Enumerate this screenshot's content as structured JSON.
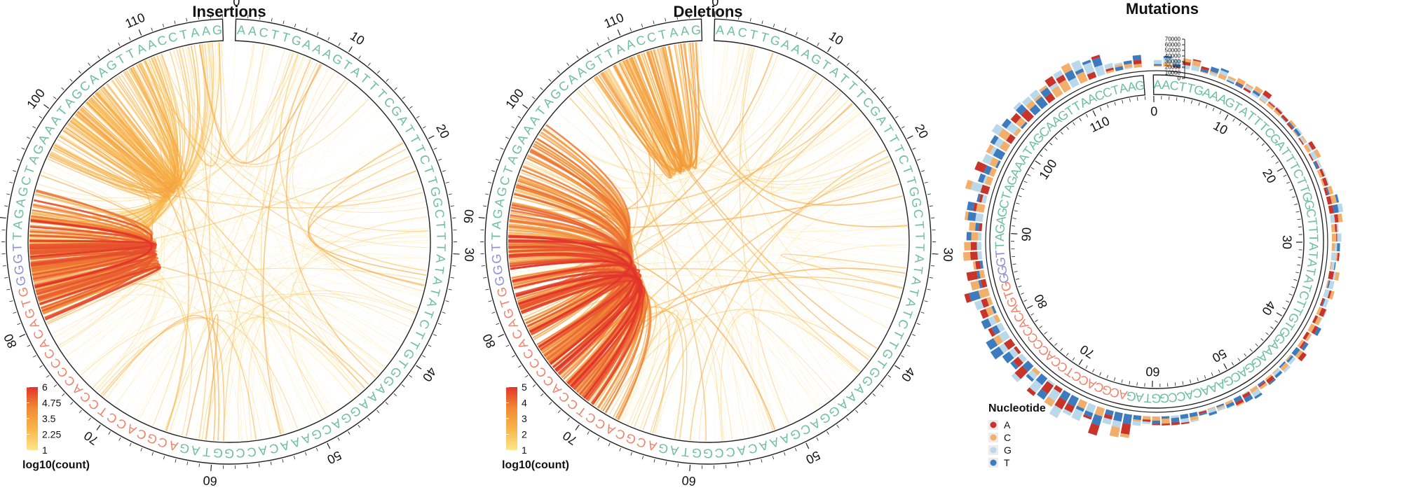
{
  "colors": {
    "seq_default": "#6dbf9e",
    "seq_highlight_blue": "#8c8fd0",
    "seq_highlight_orange": "#f0826a",
    "nucleotide": {
      "A": "#c8332a",
      "C": "#f2ae6b",
      "G": "#b9d8ea",
      "T": "#3d7bbf"
    },
    "arc_low": "#fde58a",
    "arc_high": "#e2332b"
  },
  "sequence": "AACTTGAAAGTATTTCGATTTCTTGGCTTTATATATCTTGTGGAAAGGACGAAACACCGGTAGACGCACCTCCACCCCACAGTGGGGTTAGAGCTAGAAATAGCAAGTTAACCTAAG",
  "ticks": [
    "0",
    "10",
    "20",
    "30",
    "40",
    "50",
    "60",
    "70",
    "80",
    "90",
    "100",
    "110"
  ],
  "chart_data": [
    {
      "type": "circos-arc",
      "title": "Insertions",
      "legend": {
        "title": "log10(count)",
        "ticks": [
          "6",
          "4.75",
          "3.5",
          "2.25",
          "1"
        ],
        "range": [
          1,
          6
        ]
      },
      "hotspots": [
        {
          "from": 84,
          "to": 86,
          "level": 6
        },
        {
          "from": 85,
          "to": 88,
          "level": 5.6
        },
        {
          "from": 100,
          "to": 104,
          "level": 3.5
        },
        {
          "from": 88,
          "to": 112,
          "level": 2.8
        }
      ]
    },
    {
      "type": "circos-arc",
      "title": "Deletions",
      "legend": {
        "title": "log10(count)",
        "ticks": [
          "5",
          "4",
          "3",
          "2",
          "1"
        ],
        "range": [
          1,
          5
        ]
      },
      "hotspots": [
        {
          "from": 85,
          "to": 75,
          "level": 5
        },
        {
          "from": 90,
          "to": 72,
          "level": 4.6
        },
        {
          "from": 96,
          "to": 78,
          "level": 4.2
        },
        {
          "from": 110,
          "to": 112,
          "level": 3.4
        }
      ]
    },
    {
      "type": "circos-stacked-bar",
      "title": "Mutations",
      "y_axis_ticks": [
        "70000",
        "60000",
        "50000",
        "40000",
        "30000",
        "20000",
        "10000",
        "0"
      ],
      "ylim": [
        0,
        70000
      ],
      "legend": {
        "title": "Nucleotide",
        "items": [
          "A",
          "C",
          "G",
          "T"
        ]
      }
    }
  ]
}
